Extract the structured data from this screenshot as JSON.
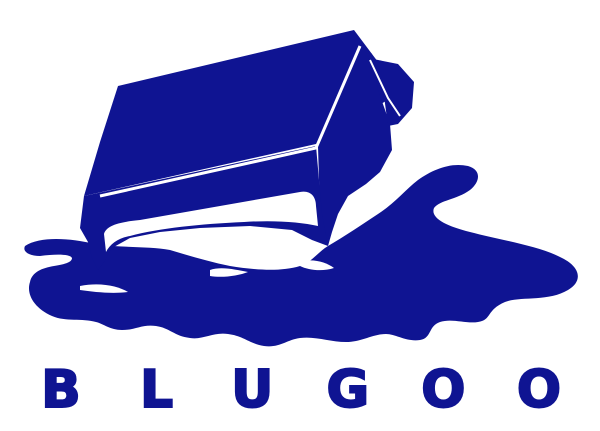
{
  "logo": {
    "wordmark": "BLUGOO",
    "colors": {
      "ink": "#0f1492",
      "background": "#ffffff"
    },
    "graphic": "melting-cube-puddle"
  }
}
